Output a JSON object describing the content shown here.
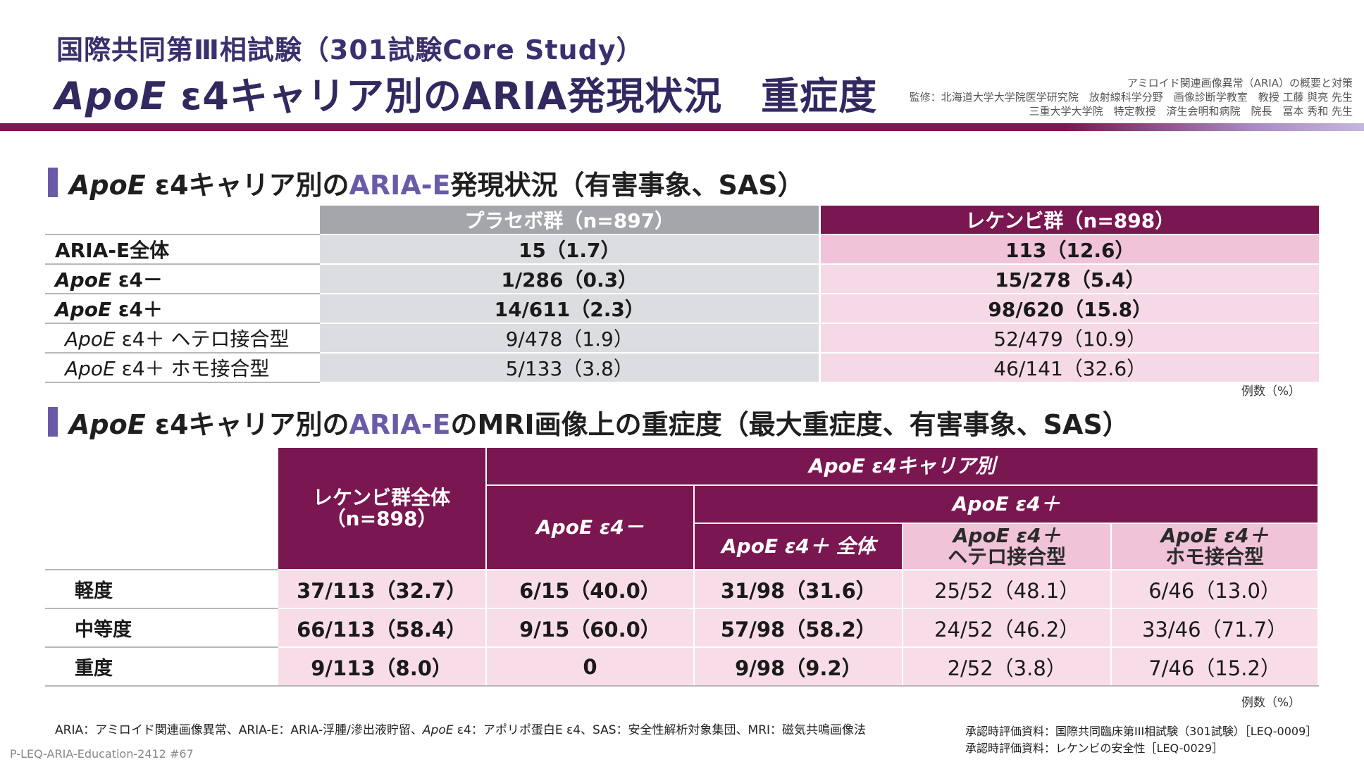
{
  "header": {
    "supertitle": "国際共同第Ⅲ相試験（301試験Core Study）",
    "title_italic": "ApoE",
    "title_rest": " ε4キャリア別のARIA発現状況　重症度",
    "credit_lines": [
      "アミロイド関連画像異常（ARIA）の概要と対策",
      "監修：北海道大学大学院医学研究院　放射線科学分野　画像診断学教室　教授 工藤 與亮 先生",
      "三重大学大学院　特定教授　済生会明和病院　院長　冨本 秀和 先生"
    ]
  },
  "section1": {
    "title_italic": "ApoE",
    "title_mid": " ε4キャリア別の",
    "title_hl": "ARIA-E",
    "title_end": "発現状況（有害事象、SAS）",
    "col_placebo": "プラセボ群（n=897）",
    "col_leqembi": "レケンビ群（n=898）",
    "rows": [
      {
        "label_it": "",
        "label": "ARIA-E全体",
        "placebo": "15（1.7）",
        "leqembi": "113（12.6）"
      },
      {
        "label_it": "ApoE",
        "label": " ε4－",
        "placebo": "1/286（0.3）",
        "leqembi": "15/278（5.4）"
      },
      {
        "label_it": "ApoE",
        "label": " ε4＋",
        "placebo": "14/611（2.3）",
        "leqembi": "98/620（15.8）"
      },
      {
        "label_it": "ApoE",
        "label": " ε4＋ ヘテロ接合型",
        "placebo": "9/478（1.9）",
        "leqembi": "52/479（10.9）"
      },
      {
        "label_it": "ApoE",
        "label": " ε4＋ ホモ接合型",
        "placebo": "5/133（3.8）",
        "leqembi": "46/141（32.6）"
      }
    ],
    "note": "例数（%）"
  },
  "section2": {
    "title_italic": "ApoE",
    "title_mid": " ε4キャリア別の",
    "title_hl": "ARIA-E",
    "title_end": "のMRI画像上の重症度（最大重症度、有害事象、SAS）",
    "h_total_1": "レケンビ群全体",
    "h_total_2": "（n=898）",
    "h_carrier": "ApoE ε4キャリア別",
    "h_neg": "ApoE ε4－",
    "h_pos": "ApoE ε4＋",
    "h_pos_all": "ApoE ε4＋ 全体",
    "h_hetero_1": "ApoE ε4＋",
    "h_hetero_2": "ヘテロ接合型",
    "h_homo_1": "ApoE ε4＋",
    "h_homo_2": "ホモ接合型",
    "rows": [
      {
        "label": "軽度",
        "total": "37/113（32.7）",
        "neg": "6/15（40.0）",
        "pos_all": "31/98（31.6）",
        "hetero": "25/52（48.1）",
        "homo": "6/46（13.0）"
      },
      {
        "label": "中等度",
        "total": "66/113（58.4）",
        "neg": "9/15（60.0）",
        "pos_all": "57/98（58.2）",
        "hetero": "24/52（46.2）",
        "homo": "33/46（71.7）"
      },
      {
        "label": "重度",
        "total": "9/113（8.0）",
        "neg": "0",
        "pos_all": "9/98（9.2）",
        "hetero": "2/52（3.8）",
        "homo": "7/46（15.2）"
      }
    ],
    "note": "例数（%）"
  },
  "footer": {
    "abbr_1": "ARIA：アミロイド関連画像異常、ARIA-E：ARIA-浮腫/滲出液貯留、",
    "abbr_it": "ApoE",
    "abbr_2": " ε4：アポリポ蛋白E ε4、SAS：安全性解析対象集団、MRI：磁気共鳴画像法",
    "ref_1": "承認時評価資料：国際共同臨床第III相試験（301試験）［LEQ-0009］",
    "ref_2": "承認時評価資料：レケンビの安全性［LEQ-0029］",
    "code": "P-LEQ-ARIA-Education-2412 #67"
  },
  "colors": {
    "brand_purple": "#6b5aa8",
    "navy_title": "#33285f",
    "maroon": "#7a1650",
    "placebo_gray": "#a4a6ab",
    "light_pink": "#f8dde8"
  }
}
